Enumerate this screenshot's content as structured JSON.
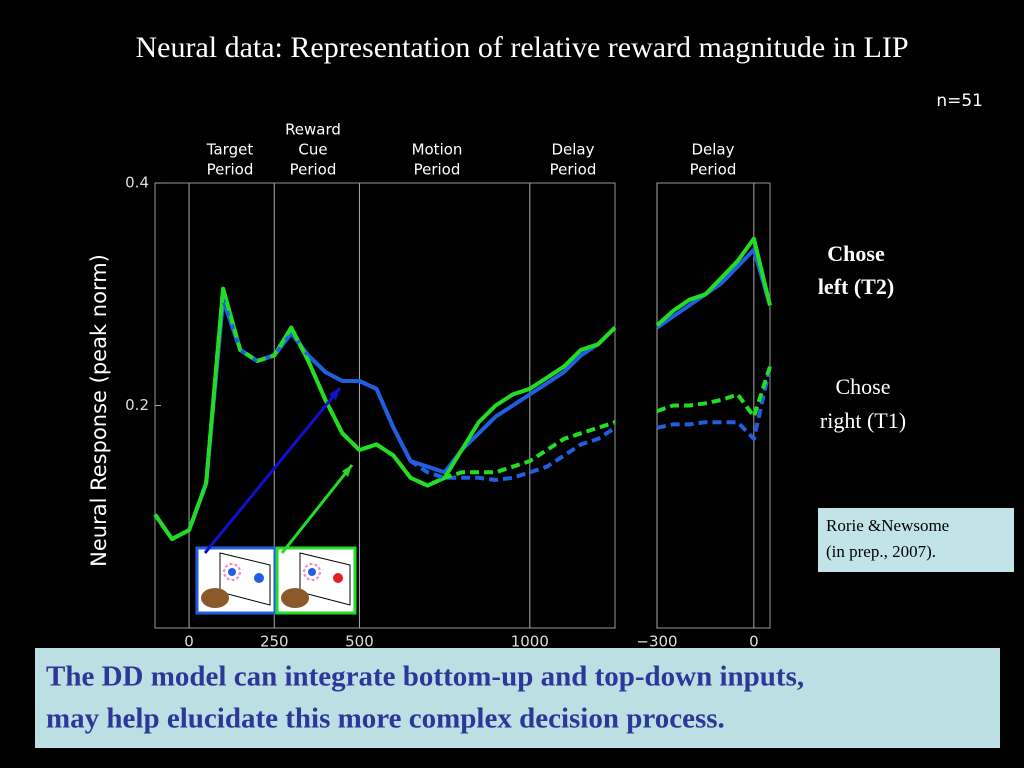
{
  "title": "Neural data: Representation of relative reward magnitude in LIP",
  "n_label": "n=51",
  "side_labels": [
    [
      "Chose",
      "left (T2)"
    ],
    [
      "Chose",
      "right (T1)"
    ]
  ],
  "citation": [
    "Rorie &Newsome",
    "(in prep., 2007)."
  ],
  "footer": [
    "The DD model can integrate bottom-up and top-down inputs,",
    "may help elucidate this more complex decision process."
  ],
  "chart_data": [
    {
      "type": "line",
      "ylabel": "Neural Response (peak norm)",
      "periods": [
        [
          "Target",
          "Period"
        ],
        [
          "Reward",
          "Cue",
          "Period"
        ],
        [
          "Motion",
          "Period"
        ],
        [
          "Delay",
          "Period"
        ]
      ],
      "xlim": [
        -100,
        1250
      ],
      "ylim": [
        0,
        0.4
      ],
      "xticks": [
        0,
        250,
        500,
        1000
      ],
      "yticks": [
        0.2,
        0.4
      ],
      "xgrid": true,
      "x": [
        -100,
        -50,
        0,
        50,
        100,
        150,
        200,
        250,
        300,
        350,
        400,
        450,
        500,
        550,
        600,
        650,
        700,
        750,
        800,
        850,
        900,
        950,
        1000,
        1050,
        1100,
        1150,
        1200,
        1250
      ],
      "series": [
        {
          "color": "#1f5fe0",
          "dash": false,
          "values": [
            0.102,
            0.08,
            0.088,
            0.13,
            0.295,
            0.25,
            0.24,
            0.245,
            0.265,
            0.245,
            0.23,
            0.222,
            0.222,
            0.215,
            0.18,
            0.15,
            0.145,
            0.14,
            0.16,
            0.175,
            0.19,
            0.2,
            0.21,
            0.22,
            0.23,
            0.245,
            0.255,
            0.27
          ]
        },
        {
          "color": "#22dd22",
          "dash": false,
          "values": [
            0.102,
            0.08,
            0.088,
            0.13,
            0.305,
            0.25,
            0.24,
            0.245,
            0.27,
            0.24,
            0.205,
            0.175,
            0.16,
            0.165,
            0.155,
            0.135,
            0.128,
            0.135,
            0.16,
            0.185,
            0.2,
            0.21,
            0.215,
            0.225,
            0.235,
            0.25,
            0.255,
            0.27
          ]
        },
        {
          "color": "#1f5fe0",
          "dash": true,
          "values": [
            0.102,
            0.08,
            0.088,
            0.13,
            0.295,
            0.25,
            0.24,
            0.245,
            0.265,
            0.245,
            0.23,
            0.222,
            0.222,
            0.215,
            0.18,
            0.15,
            0.14,
            0.135,
            0.135,
            0.135,
            0.133,
            0.135,
            0.14,
            0.145,
            0.155,
            0.165,
            0.17,
            0.18
          ]
        },
        {
          "color": "#22dd22",
          "dash": true,
          "values": [
            0.102,
            0.08,
            0.088,
            0.13,
            0.305,
            0.25,
            0.24,
            0.245,
            0.27,
            0.24,
            0.205,
            0.175,
            0.16,
            0.165,
            0.155,
            0.135,
            0.128,
            0.135,
            0.14,
            0.14,
            0.14,
            0.145,
            0.15,
            0.16,
            0.17,
            0.175,
            0.18,
            0.185
          ]
        }
      ]
    },
    {
      "type": "line",
      "periods": [
        [
          "Delay",
          "Period"
        ]
      ],
      "xlim": [
        -300,
        50
      ],
      "ylim": [
        0,
        0.4
      ],
      "xticks": [
        {
          "value": -300,
          "label": "−300"
        },
        0
      ],
      "xgrid": true,
      "x": [
        -300,
        -250,
        -200,
        -150,
        -100,
        -50,
        0,
        50
      ],
      "series": [
        {
          "color": "#1f5fe0",
          "dash": false,
          "values": [
            0.27,
            0.28,
            0.29,
            0.3,
            0.31,
            0.325,
            0.34,
            0.29
          ]
        },
        {
          "color": "#22dd22",
          "dash": false,
          "values": [
            0.272,
            0.285,
            0.295,
            0.3,
            0.315,
            0.33,
            0.35,
            0.29
          ]
        },
        {
          "color": "#1f5fe0",
          "dash": true,
          "values": [
            0.18,
            0.183,
            0.183,
            0.185,
            0.185,
            0.185,
            0.17,
            0.235
          ]
        },
        {
          "color": "#22dd22",
          "dash": true,
          "values": [
            0.195,
            0.2,
            0.2,
            0.202,
            0.205,
            0.21,
            0.19,
            0.235
          ]
        }
      ]
    }
  ]
}
